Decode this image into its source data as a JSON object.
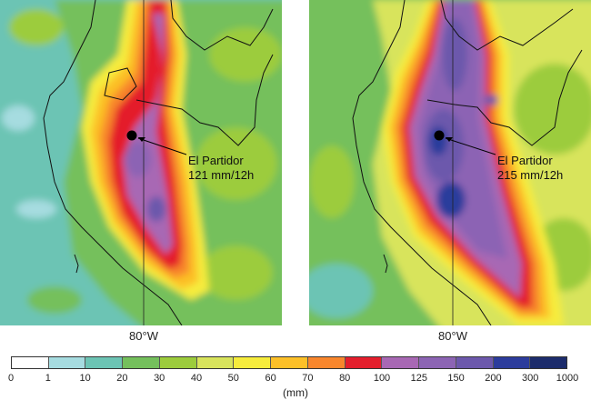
{
  "panels": [
    {
      "id": "left",
      "longitude_label": "80°W",
      "station": {
        "name": "El Partidor",
        "value": "121 mm/12h"
      }
    },
    {
      "id": "right",
      "longitude_label": "80°W",
      "station": {
        "name": "El Partidor",
        "value": "215 mm/12h"
      }
    }
  ],
  "legend": {
    "unit": "(mm)",
    "ticks": [
      "0",
      "1",
      "10",
      "20",
      "30",
      "40",
      "50",
      "60",
      "70",
      "80",
      "100",
      "125",
      "150",
      "200",
      "300",
      "1000"
    ],
    "colors": [
      "#ffffff",
      "#a6dce0",
      "#6cc4b4",
      "#74c05c",
      "#9ccc3c",
      "#d8e45c",
      "#f6ec3c",
      "#fcc028",
      "#f8862c",
      "#e41e2c",
      "#a868b4",
      "#8c64b4",
      "#6c58ac",
      "#2c3c9c",
      "#1c2c6c"
    ]
  }
}
